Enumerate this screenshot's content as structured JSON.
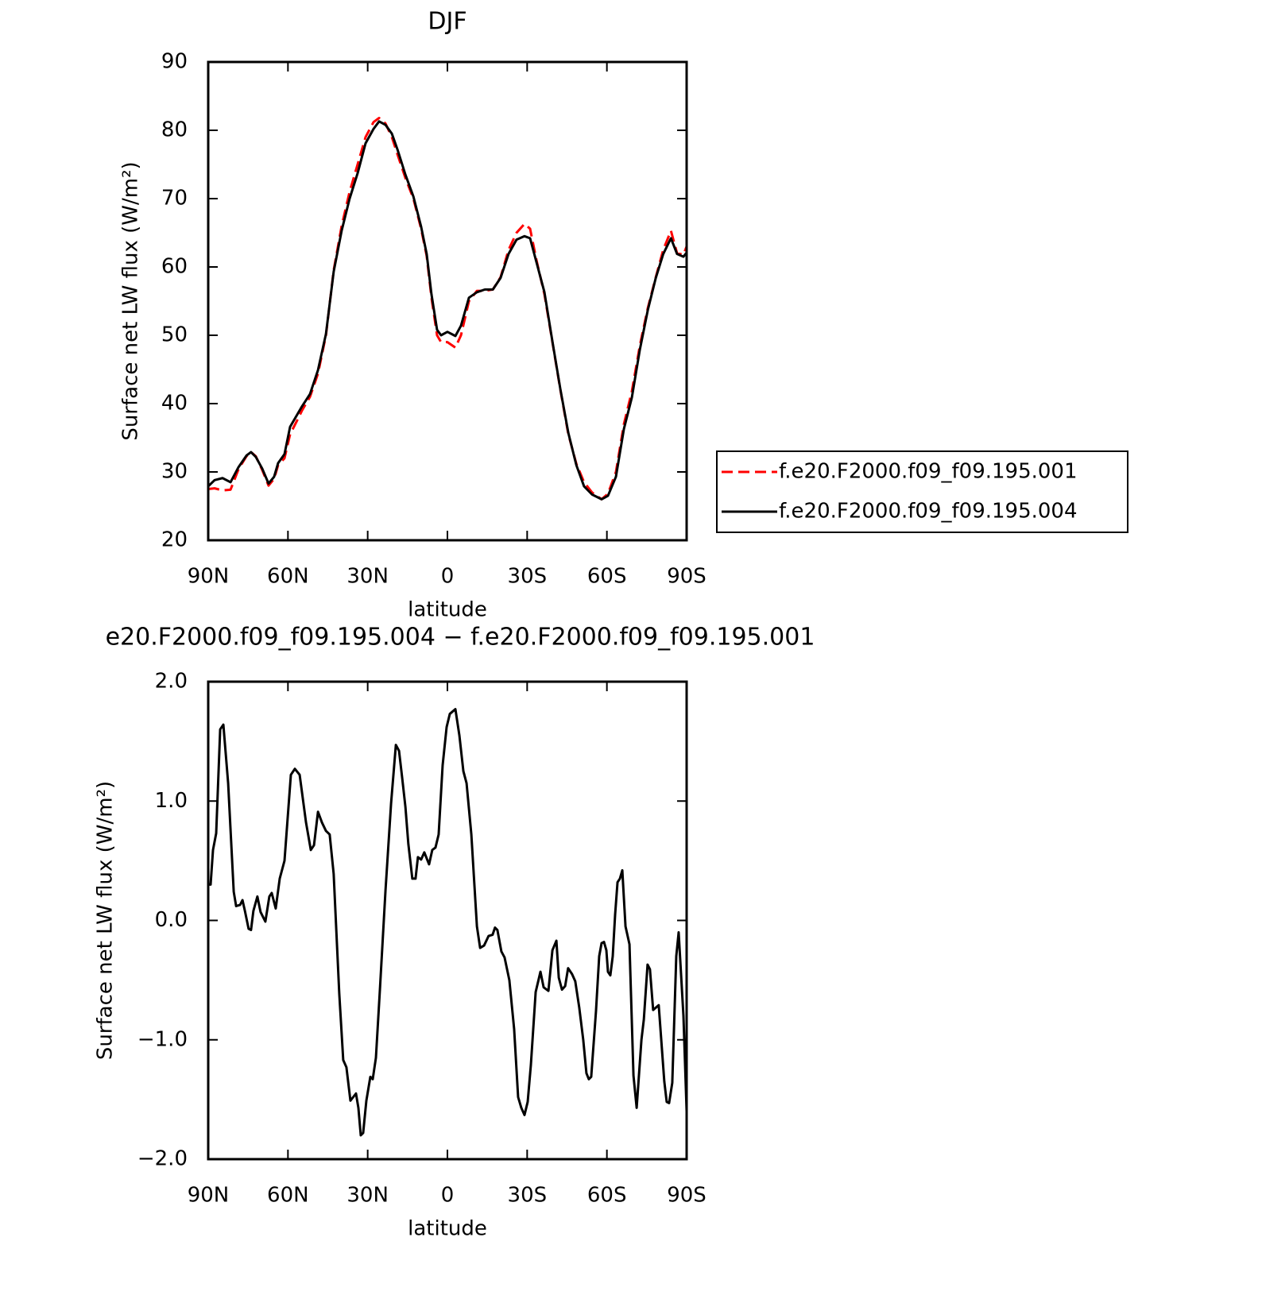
{
  "chart_data": [
    {
      "type": "line",
      "title": "DJF",
      "x_label": "latitude",
      "y_label": "Surface net LW flux (W/m²)",
      "xlim": [
        90,
        -90
      ],
      "xticks": [
        {
          "value": 90,
          "label": "90N"
        },
        {
          "value": 60,
          "label": "60N"
        },
        {
          "value": 30,
          "label": "30N"
        },
        0,
        {
          "value": -30,
          "label": "30S"
        },
        {
          "value": -60,
          "label": "60S"
        },
        {
          "value": -90,
          "label": "90S"
        }
      ],
      "ylim": [
        20,
        90
      ],
      "yticks": [
        20,
        30,
        40,
        50,
        60,
        70,
        80,
        90
      ],
      "legend": "right",
      "x": [
        90,
        87.6,
        84.6,
        81.6,
        78.6,
        75.6,
        73.9,
        72.1,
        69.7,
        67.3,
        65.2,
        63.7,
        61.3,
        59.2,
        56.2,
        54.7,
        51.7,
        48.7,
        45.7,
        42.8,
        39.8,
        36.8,
        33.8,
        30.8,
        27.8,
        25.7,
        23.3,
        20.9,
        18.8,
        15.8,
        12.8,
        9.9,
        7.8,
        6.0,
        3.9,
        2.4,
        0,
        -3.0,
        -5.1,
        -8.1,
        -11.1,
        -14.1,
        -17.1,
        -20.0,
        -23.0,
        -26.0,
        -29.0,
        -31.1,
        -33.5,
        -36.5,
        -39.5,
        -42.5,
        -45.5,
        -48.5,
        -51.4,
        -54.4,
        -58.0,
        -60.4,
        -63.4,
        -66.4,
        -69.4,
        -72.4,
        -75.4,
        -78.4,
        -81.2,
        -84.1,
        -86.4,
        -88.8,
        -90
      ],
      "series": [
        {
          "name": "f.e20.F2000.f09_f09.195.001",
          "color": "#ff0000",
          "linestyle": "dashed",
          "values": [
            27.5,
            27.6,
            27.3,
            27.4,
            30.4,
            32.3,
            32.9,
            32.3,
            30.3,
            28.0,
            29.0,
            31.0,
            32.0,
            35.5,
            37.8,
            39.0,
            41.0,
            44.4,
            50.0,
            59.5,
            66.0,
            71.0,
            75.0,
            79.0,
            81.2,
            81.8,
            81.0,
            79.0,
            76.5,
            73.0,
            70.0,
            65.6,
            61.6,
            55.5,
            50.0,
            49.0,
            49.0,
            48.2,
            50.0,
            55.0,
            56.5,
            56.5,
            56.7,
            58.5,
            62.5,
            65.0,
            66.3,
            65.6,
            61.0,
            56.0,
            49.0,
            42.0,
            35.5,
            31.2,
            28.5,
            27.0,
            26.0,
            26.8,
            30.0,
            37.0,
            41.8,
            48.5,
            54.0,
            58.5,
            62.5,
            65.3,
            62.0,
            61.8,
            63.0
          ]
        },
        {
          "name": "f.e20.F2000.f09_f09.195.004",
          "color": "#000000",
          "linestyle": "solid",
          "values": [
            27.9,
            28.8,
            29.1,
            28.5,
            30.7,
            32.4,
            32.9,
            32.2,
            30.5,
            28.3,
            29.3,
            31.3,
            32.6,
            36.6,
            38.6,
            39.6,
            41.4,
            44.9,
            50.2,
            59.3,
            65.3,
            70.0,
            73.7,
            78.1,
            80.2,
            81.3,
            80.8,
            79.5,
            77.2,
            73.5,
            70.3,
            65.9,
            61.9,
            56.0,
            50.8,
            50.0,
            50.5,
            49.9,
            51.4,
            55.5,
            56.3,
            56.7,
            56.7,
            58.4,
            61.9,
            64.0,
            64.5,
            64.2,
            60.7,
            56.3,
            49.1,
            42.1,
            35.7,
            31.0,
            27.9,
            26.7,
            26.0,
            26.5,
            29.3,
            36.3,
            40.9,
            47.9,
            53.7,
            58.4,
            61.9,
            64.2,
            61.9,
            61.5,
            62.1
          ]
        }
      ]
    },
    {
      "type": "line",
      "title": "e20.F2000.f09_f09.195.004 − f.e20.F2000.f09_f09.195.001",
      "x_label": "latitude",
      "y_label": "Surface net LW flux (W/m²)",
      "xlim": [
        90,
        -90
      ],
      "xticks": [
        {
          "value": 90,
          "label": "90N"
        },
        {
          "value": 60,
          "label": "60N"
        },
        {
          "value": 30,
          "label": "30N"
        },
        0,
        {
          "value": -30,
          "label": "30S"
        },
        {
          "value": -60,
          "label": "60S"
        },
        {
          "value": -90,
          "label": "90S"
        }
      ],
      "ylim": [
        -2,
        2
      ],
      "yticks": [
        {
          "value": -2,
          "label": "−2.0"
        },
        {
          "value": -1,
          "label": "−1.0"
        },
        {
          "value": 0,
          "label": "0.0"
        },
        {
          "value": 1,
          "label": "1.0"
        },
        {
          "value": 2,
          "label": "2.0"
        }
      ],
      "x": [
        90.0,
        89.1,
        88.2,
        87.0,
        85.5,
        84.3,
        82.5,
        80.4,
        79.5,
        78.0,
        77.1,
        76.2,
        74.8,
        73.9,
        73.0,
        71.5,
        70.3,
        68.5,
        67.0,
        66.1,
        64.6,
        63.1,
        61.3,
        58.9,
        57.4,
        55.6,
        53.2,
        51.4,
        50.2,
        48.7,
        47.2,
        45.7,
        44.3,
        42.8,
        40.7,
        39.2,
        38.0,
        36.5,
        34.4,
        33.5,
        32.6,
        31.7,
        30.5,
        29.0,
        28.1,
        26.9,
        25.4,
        23.3,
        21.2,
        19.4,
        18.2,
        17.0,
        15.8,
        14.7,
        13.2,
        12.0,
        11.1,
        9.9,
        8.7,
        6.9,
        5.7,
        4.5,
        3.3,
        1.8,
        0.3,
        -0.9,
        -3.0,
        -4.5,
        -6.0,
        -7.2,
        -9.0,
        -11.1,
        -12.3,
        -13.8,
        -15.5,
        -17.0,
        -17.9,
        -18.8,
        -20.3,
        -21.5,
        -23.3,
        -25.1,
        -26.6,
        -27.8,
        -29.0,
        -30.2,
        -31.4,
        -33.2,
        -35.0,
        -36.2,
        -38.0,
        -39.5,
        -41.0,
        -41.9,
        -43.1,
        -44.3,
        -45.4,
        -46.9,
        -48.1,
        -49.6,
        -51.1,
        -52.3,
        -53.2,
        -54.1,
        -55.9,
        -57.1,
        -58.0,
        -58.9,
        -59.8,
        -60.4,
        -61.3,
        -62.2,
        -63.1,
        -64.0,
        -64.9,
        -65.8,
        -67.0,
        -68.5,
        -70.0,
        -71.2,
        -73.0,
        -73.9,
        -75.3,
        -76.2,
        -77.4,
        -79.5,
        -81.6,
        -82.5,
        -83.4,
        -84.6,
        -86.1,
        -87.0,
        -88.8,
        -90.0
      ],
      "series": [
        {
          "color": "#000000",
          "linestyle": "solid",
          "values": [
            0.3,
            0.3,
            0.59,
            0.73,
            1.6,
            1.64,
            1.15,
            0.24,
            0.12,
            0.13,
            0.17,
            0.08,
            -0.07,
            -0.08,
            0.08,
            0.2,
            0.07,
            -0.01,
            0.2,
            0.23,
            0.1,
            0.35,
            0.5,
            1.22,
            1.27,
            1.22,
            0.82,
            0.59,
            0.63,
            0.91,
            0.82,
            0.75,
            0.72,
            0.39,
            -0.61,
            -1.17,
            -1.23,
            -1.51,
            -1.45,
            -1.57,
            -1.8,
            -1.78,
            -1.51,
            -1.31,
            -1.33,
            -1.15,
            -0.58,
            0.25,
            0.98,
            1.47,
            1.42,
            1.19,
            0.95,
            0.64,
            0.35,
            0.35,
            0.53,
            0.51,
            0.57,
            0.47,
            0.59,
            0.61,
            0.72,
            1.3,
            1.62,
            1.73,
            1.77,
            1.55,
            1.25,
            1.15,
            0.72,
            -0.05,
            -0.23,
            -0.21,
            -0.13,
            -0.12,
            -0.06,
            -0.08,
            -0.26,
            -0.31,
            -0.5,
            -0.91,
            -1.48,
            -1.57,
            -1.63,
            -1.52,
            -1.21,
            -0.6,
            -0.43,
            -0.56,
            -0.59,
            -0.25,
            -0.17,
            -0.48,
            -0.58,
            -0.55,
            -0.4,
            -0.45,
            -0.51,
            -0.73,
            -1.0,
            -1.28,
            -1.33,
            -1.31,
            -0.76,
            -0.3,
            -0.19,
            -0.18,
            -0.25,
            -0.43,
            -0.46,
            -0.3,
            0.05,
            0.32,
            0.35,
            0.42,
            -0.05,
            -0.2,
            -1.3,
            -1.57,
            -1.0,
            -0.83,
            -0.37,
            -0.41,
            -0.75,
            -0.71,
            -1.35,
            -1.52,
            -1.53,
            -1.36,
            -0.3,
            -0.1,
            -0.8,
            -1.6
          ]
        }
      ]
    }
  ]
}
